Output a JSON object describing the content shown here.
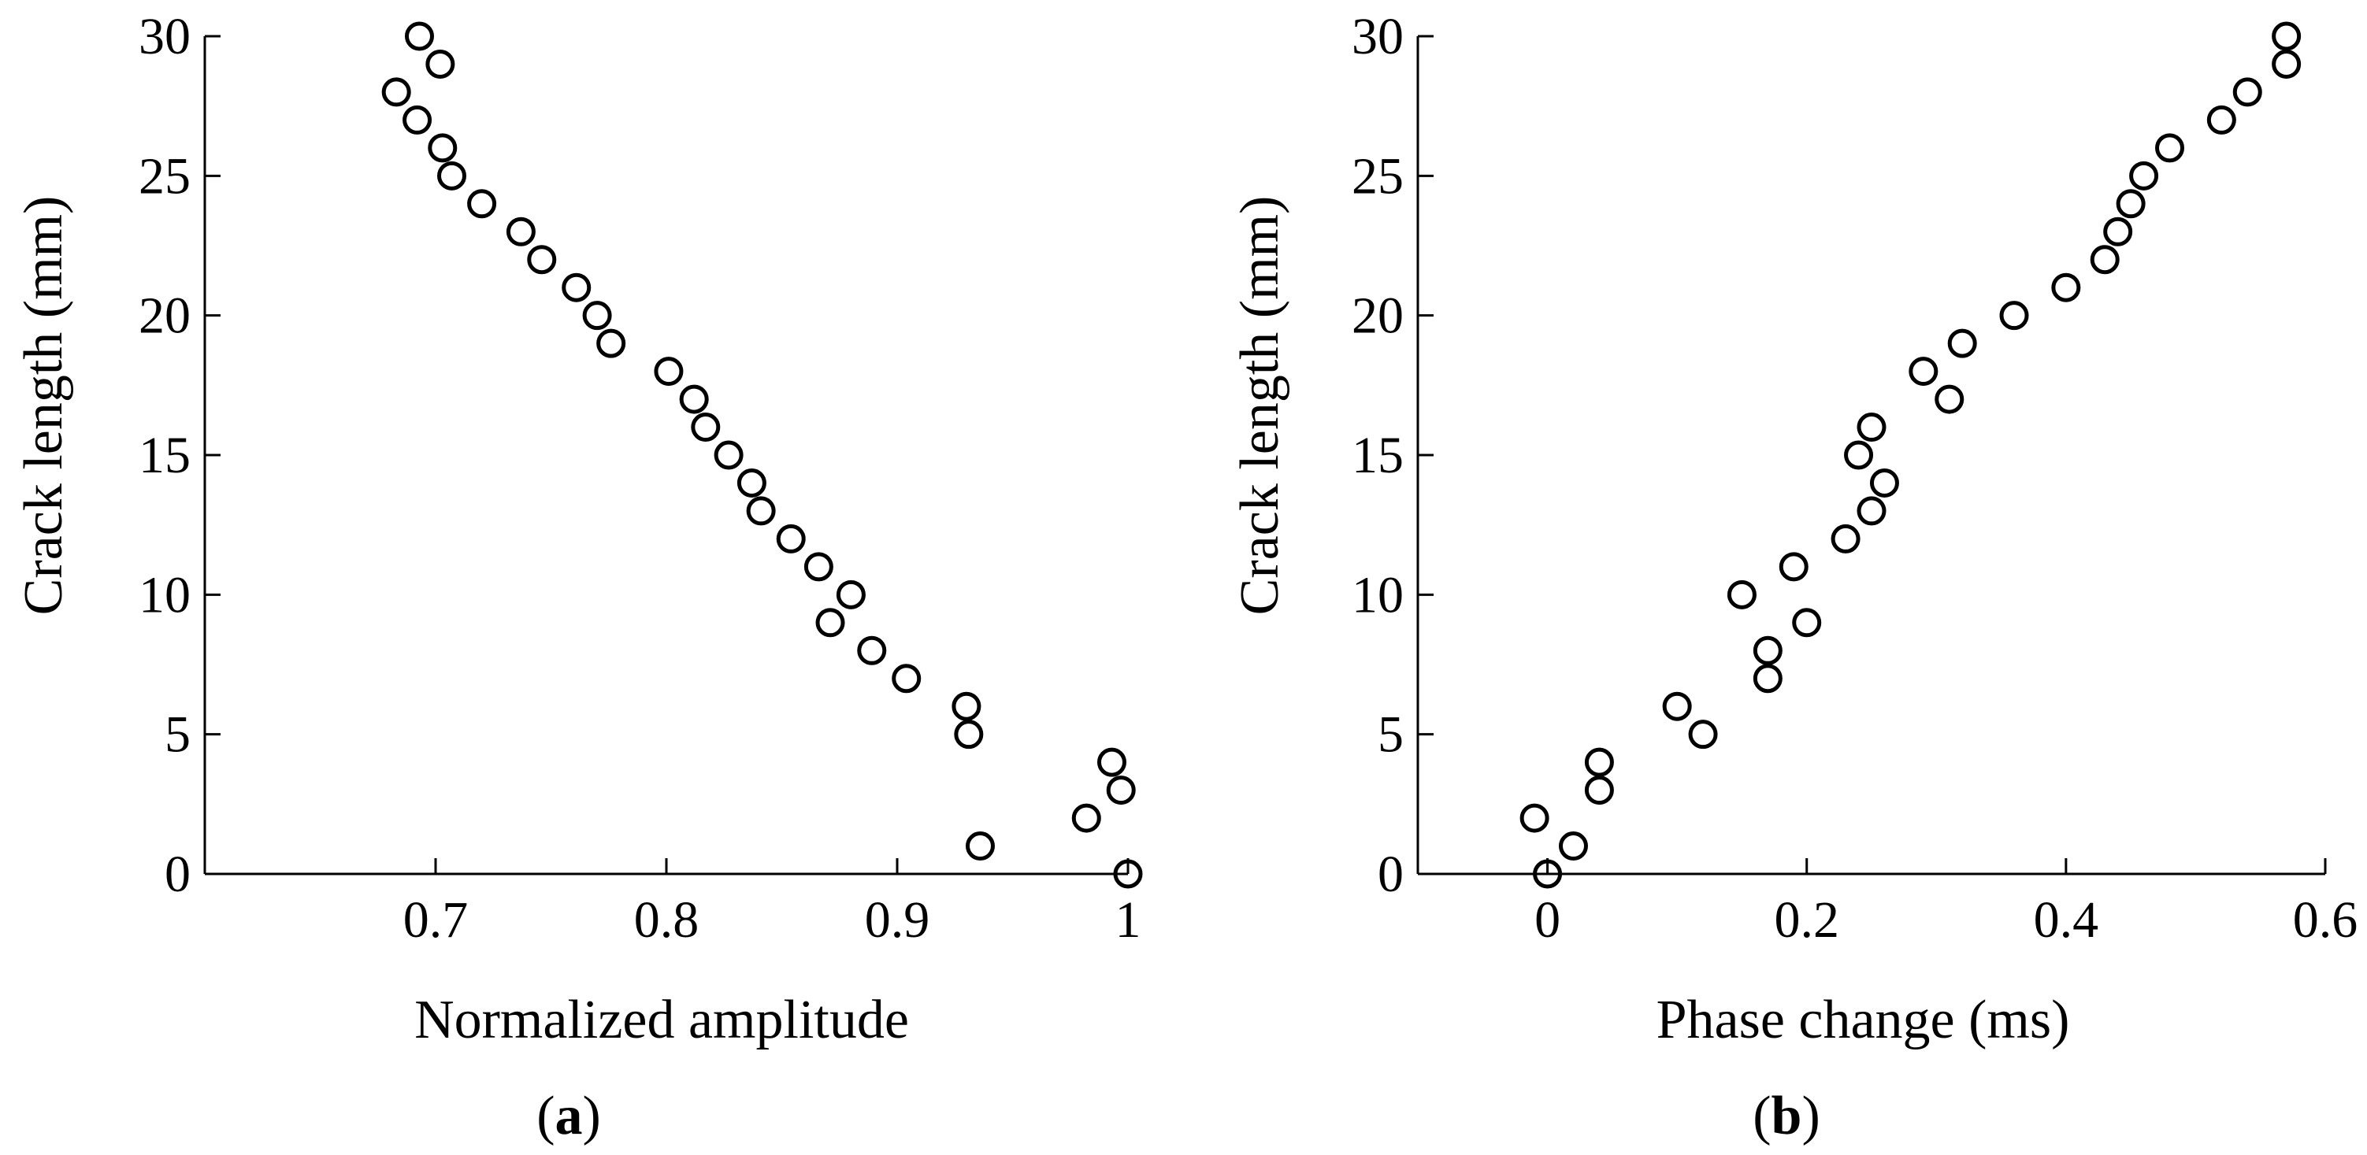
{
  "chart_data": [
    {
      "type": "scatter",
      "panel_label": "a",
      "caption_open": "(",
      "caption_close": ")",
      "title": "",
      "xlabel": "Normalized amplitude",
      "ylabel": "Crack length (mm)",
      "xlim": [
        0.6,
        1.0
      ],
      "ylim": [
        0,
        30
      ],
      "xticks": [
        0.7,
        0.8,
        0.9,
        1
      ],
      "xtick_labels": [
        "0.7",
        "0.8",
        "0.9",
        "1"
      ],
      "yticks": [
        0,
        5,
        10,
        15,
        20,
        25,
        30
      ],
      "ytick_labels": [
        "0",
        "5",
        "10",
        "15",
        "20",
        "25",
        "30"
      ],
      "marker": "open-circle",
      "grid": false,
      "legend": "none",
      "points": [
        {
          "x": 1.0,
          "y": 0
        },
        {
          "x": 0.936,
          "y": 1
        },
        {
          "x": 0.982,
          "y": 2
        },
        {
          "x": 0.997,
          "y": 3
        },
        {
          "x": 0.993,
          "y": 4
        },
        {
          "x": 0.931,
          "y": 5
        },
        {
          "x": 0.93,
          "y": 6
        },
        {
          "x": 0.904,
          "y": 7
        },
        {
          "x": 0.889,
          "y": 8
        },
        {
          "x": 0.871,
          "y": 9
        },
        {
          "x": 0.88,
          "y": 10
        },
        {
          "x": 0.866,
          "y": 11
        },
        {
          "x": 0.854,
          "y": 12
        },
        {
          "x": 0.841,
          "y": 13
        },
        {
          "x": 0.837,
          "y": 14
        },
        {
          "x": 0.827,
          "y": 15
        },
        {
          "x": 0.817,
          "y": 16
        },
        {
          "x": 0.812,
          "y": 17
        },
        {
          "x": 0.801,
          "y": 18
        },
        {
          "x": 0.776,
          "y": 19
        },
        {
          "x": 0.77,
          "y": 20
        },
        {
          "x": 0.761,
          "y": 21
        },
        {
          "x": 0.746,
          "y": 22
        },
        {
          "x": 0.737,
          "y": 23
        },
        {
          "x": 0.72,
          "y": 24
        },
        {
          "x": 0.707,
          "y": 25
        },
        {
          "x": 0.703,
          "y": 26
        },
        {
          "x": 0.692,
          "y": 27
        },
        {
          "x": 0.683,
          "y": 28
        },
        {
          "x": 0.702,
          "y": 29
        },
        {
          "x": 0.693,
          "y": 30
        }
      ]
    },
    {
      "type": "scatter",
      "panel_label": "b",
      "caption_open": "(",
      "caption_close": ")",
      "title": "",
      "xlabel": "Phase change (ms)",
      "ylabel": "Crack length (mm)",
      "xlim": [
        -0.1,
        0.6
      ],
      "ylim": [
        0,
        30
      ],
      "xticks": [
        0,
        0.2,
        0.4,
        0.6
      ],
      "xtick_labels": [
        "0",
        "0.2",
        "0.4",
        "0.6"
      ],
      "yticks": [
        0,
        5,
        10,
        15,
        20,
        25,
        30
      ],
      "ytick_labels": [
        "0",
        "5",
        "10",
        "15",
        "20",
        "25",
        "30"
      ],
      "marker": "open-circle",
      "grid": false,
      "legend": "none",
      "points": [
        {
          "x": 0.0,
          "y": 0
        },
        {
          "x": 0.02,
          "y": 1
        },
        {
          "x": -0.01,
          "y": 2
        },
        {
          "x": 0.04,
          "y": 3
        },
        {
          "x": 0.04,
          "y": 4
        },
        {
          "x": 0.12,
          "y": 5
        },
        {
          "x": 0.1,
          "y": 6
        },
        {
          "x": 0.17,
          "y": 7
        },
        {
          "x": 0.17,
          "y": 8
        },
        {
          "x": 0.2,
          "y": 9
        },
        {
          "x": 0.15,
          "y": 10
        },
        {
          "x": 0.19,
          "y": 11
        },
        {
          "x": 0.23,
          "y": 12
        },
        {
          "x": 0.25,
          "y": 13
        },
        {
          "x": 0.26,
          "y": 14
        },
        {
          "x": 0.24,
          "y": 15
        },
        {
          "x": 0.25,
          "y": 16
        },
        {
          "x": 0.31,
          "y": 17
        },
        {
          "x": 0.29,
          "y": 18
        },
        {
          "x": 0.32,
          "y": 19
        },
        {
          "x": 0.36,
          "y": 20
        },
        {
          "x": 0.4,
          "y": 21
        },
        {
          "x": 0.43,
          "y": 22
        },
        {
          "x": 0.44,
          "y": 23
        },
        {
          "x": 0.45,
          "y": 24
        },
        {
          "x": 0.46,
          "y": 25
        },
        {
          "x": 0.48,
          "y": 26
        },
        {
          "x": 0.52,
          "y": 27
        },
        {
          "x": 0.54,
          "y": 28
        },
        {
          "x": 0.57,
          "y": 29
        },
        {
          "x": 0.57,
          "y": 30
        }
      ]
    }
  ]
}
